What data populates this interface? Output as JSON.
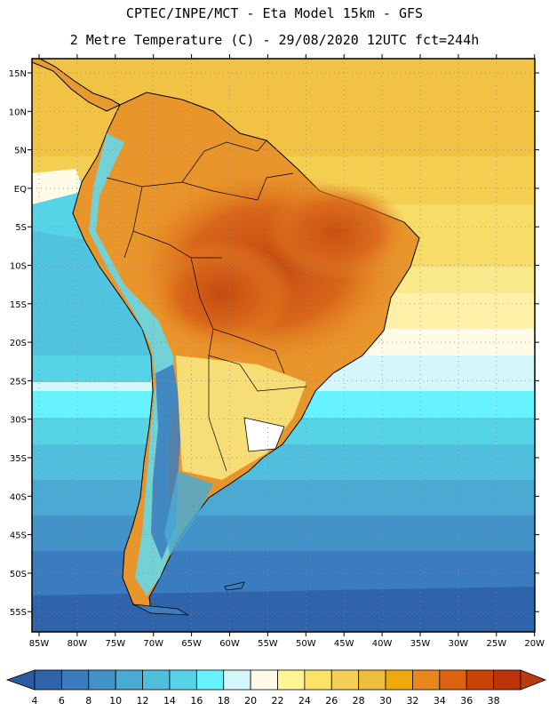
{
  "header": {
    "line1": "CPTEC/INPE/MCT -  Eta Model 15km - GFS",
    "line2": "2 Metre Temperature (C) - 29/08/2020 12UTC fct=244h"
  },
  "map": {
    "lat_labels": [
      "15N",
      "10N",
      "5N",
      "EQ",
      "5S",
      "10S",
      "15S",
      "20S",
      "25S",
      "30S",
      "35S",
      "40S",
      "45S",
      "50S",
      "55S"
    ],
    "lon_labels": [
      "85W",
      "80W",
      "75W",
      "70W",
      "65W",
      "60W",
      "55W",
      "50W",
      "45W",
      "40W",
      "35W",
      "30W",
      "25W",
      "20W"
    ]
  },
  "colorbar": {
    "labels": [
      "4",
      "6",
      "8",
      "10",
      "12",
      "14",
      "16",
      "18",
      "20",
      "22",
      "24",
      "26",
      "28",
      "30",
      "32",
      "34",
      "36",
      "38"
    ],
    "colors": [
      "#2f64ac",
      "#3a7cbf",
      "#4393c8",
      "#4aaad3",
      "#4fbfdd",
      "#56d3e6",
      "#66f2ff",
      "#d4f7fb",
      "#fffbe6",
      "#fff595",
      "#fbe368",
      "#f4d058",
      "#edbe3c",
      "#f0a90d",
      "#e9861c",
      "#de6210",
      "#c84306",
      "#bd3309"
    ],
    "under_color": "#2a5ca3",
    "over_color": "#b83a10"
  }
}
